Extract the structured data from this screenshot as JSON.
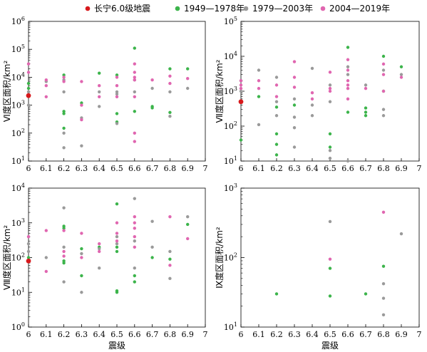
{
  "legend": [
    {
      "label": "长宁6.0级地震",
      "color": "#d7191c"
    },
    {
      "label": "1949—1978年",
      "color": "#3cb44b"
    },
    {
      "label": "1979—2003年",
      "color": "#9a9a9a"
    },
    {
      "label": "2004—2019年",
      "color": "#e066b0"
    }
  ],
  "chart_data": [
    {
      "type": "scatter",
      "ylabel": "Ⅵ度区面积/km²",
      "xlabel": "",
      "xlim": [
        6,
        7
      ],
      "xticks": [
        "6",
        "6.1",
        "6.2",
        "6.3",
        "6.4",
        "6.5",
        "6.6",
        "6.7",
        "6.8",
        "6.9",
        "7"
      ],
      "ylim_log10": [
        1,
        6
      ],
      "yscale": "log",
      "series": [
        {
          "color": "#3cb44b",
          "points": [
            [
              6.0,
              6000
            ],
            [
              6.0,
              4000
            ],
            [
              6.2,
              12000
            ],
            [
              6.2,
              600
            ],
            [
              6.2,
              500
            ],
            [
              6.2,
              150
            ],
            [
              6.3,
              1200
            ],
            [
              6.4,
              14000
            ],
            [
              6.5,
              12000
            ],
            [
              6.5,
              500
            ],
            [
              6.5,
              250
            ],
            [
              6.6,
              110000
            ],
            [
              6.6,
              600
            ],
            [
              6.7,
              900
            ],
            [
              6.7,
              800
            ],
            [
              6.8,
              20000
            ],
            [
              6.8,
              550
            ],
            [
              6.9,
              20000
            ]
          ]
        },
        {
          "color": "#9a9a9a",
          "points": [
            [
              6.0,
              3000
            ],
            [
              6.0,
              1000
            ],
            [
              6.1,
              7000
            ],
            [
              6.2,
              8000
            ],
            [
              6.2,
              3000
            ],
            [
              6.2,
              100
            ],
            [
              6.2,
              30
            ],
            [
              6.3,
              350
            ],
            [
              6.3,
              35
            ],
            [
              6.4,
              3000
            ],
            [
              6.4,
              900
            ],
            [
              6.5,
              3000
            ],
            [
              6.5,
              2500
            ],
            [
              6.5,
              220
            ],
            [
              6.6,
              8000
            ],
            [
              6.6,
              3000
            ],
            [
              6.7,
              4000
            ],
            [
              6.8,
              3000
            ],
            [
              6.8,
              400
            ],
            [
              6.9,
              4000
            ]
          ]
        },
        {
          "color": "#e066b0",
          "points": [
            [
              6.0,
              30000
            ],
            [
              6.0,
              15000
            ],
            [
              6.1,
              8000
            ],
            [
              6.1,
              5000
            ],
            [
              6.1,
              2000
            ],
            [
              6.2,
              10000
            ],
            [
              6.2,
              7000
            ],
            [
              6.3,
              7000
            ],
            [
              6.3,
              1000
            ],
            [
              6.3,
              300
            ],
            [
              6.4,
              5000
            ],
            [
              6.4,
              2000
            ],
            [
              6.5,
              10000
            ],
            [
              6.5,
              5000
            ],
            [
              6.5,
              2000
            ],
            [
              6.6,
              30000
            ],
            [
              6.6,
              15000
            ],
            [
              6.6,
              10000
            ],
            [
              6.6,
              8000
            ],
            [
              6.6,
              2000
            ],
            [
              6.6,
              100
            ],
            [
              6.6,
              50
            ],
            [
              6.7,
              8000
            ],
            [
              6.8,
              11000
            ],
            [
              6.8,
              6000
            ],
            [
              6.9,
              9000
            ]
          ]
        },
        {
          "color": "#d7191c",
          "points": [
            [
              6.0,
              2200
            ]
          ]
        }
      ]
    },
    {
      "type": "scatter",
      "ylabel": "Ⅶ度区面积/km²",
      "xlabel": "",
      "xlim": [
        6,
        7
      ],
      "xticks": [
        "6",
        "6.1",
        "6.2",
        "6.3",
        "6.4",
        "6.5",
        "6.6",
        "6.7",
        "6.8",
        "6.9",
        "7"
      ],
      "ylim_log10": [
        1,
        5
      ],
      "yscale": "log",
      "series": [
        {
          "color": "#3cb44b",
          "points": [
            [
              6.0,
              40
            ],
            [
              6.1,
              700
            ],
            [
              6.2,
              350
            ],
            [
              6.2,
              60
            ],
            [
              6.2,
              30
            ],
            [
              6.2,
              15
            ],
            [
              6.3,
              400
            ],
            [
              6.5,
              60
            ],
            [
              6.5,
              25
            ],
            [
              6.6,
              18000
            ],
            [
              6.6,
              250
            ],
            [
              6.7,
              330
            ],
            [
              6.7,
              250
            ],
            [
              6.7,
              200
            ],
            [
              6.8,
              10000
            ],
            [
              6.8,
              1000
            ],
            [
              6.9,
              5000
            ]
          ]
        },
        {
          "color": "#9a9a9a",
          "points": [
            [
              6.0,
              2000
            ],
            [
              6.0,
              1000
            ],
            [
              6.1,
              4000
            ],
            [
              6.1,
              110
            ],
            [
              6.2,
              2500
            ],
            [
              6.2,
              500
            ],
            [
              6.2,
              200
            ],
            [
              6.3,
              600
            ],
            [
              6.3,
              180
            ],
            [
              6.3,
              90
            ],
            [
              6.3,
              25
            ],
            [
              6.4,
              4500
            ],
            [
              6.4,
              400
            ],
            [
              6.4,
              200
            ],
            [
              6.5,
              1500
            ],
            [
              6.5,
              500
            ],
            [
              6.5,
              20
            ],
            [
              6.5,
              12
            ],
            [
              6.6,
              5000
            ],
            [
              6.6,
              3000
            ],
            [
              6.6,
              10
            ],
            [
              6.7,
              1500
            ],
            [
              6.8,
              4000
            ],
            [
              6.8,
              300
            ],
            [
              6.8,
              200
            ],
            [
              6.9,
              3000
            ]
          ]
        },
        {
          "color": "#e066b0",
          "points": [
            [
              6.0,
              2000
            ],
            [
              6.0,
              1500
            ],
            [
              6.0,
              1200
            ],
            [
              6.1,
              2000
            ],
            [
              6.1,
              1200
            ],
            [
              6.2,
              1500
            ],
            [
              6.2,
              700
            ],
            [
              6.3,
              7000
            ],
            [
              6.3,
              2500
            ],
            [
              6.3,
              1300
            ],
            [
              6.4,
              900
            ],
            [
              6.4,
              600
            ],
            [
              6.5,
              3500
            ],
            [
              6.5,
              1200
            ],
            [
              6.5,
              1000
            ],
            [
              6.6,
              8000
            ],
            [
              6.6,
              4000
            ],
            [
              6.6,
              2000
            ],
            [
              6.6,
              1500
            ],
            [
              6.6,
              1200
            ],
            [
              6.6,
              600
            ],
            [
              6.7,
              1200
            ],
            [
              6.8,
              6000
            ],
            [
              6.8,
              3000
            ],
            [
              6.8,
              1000
            ],
            [
              6.9,
              2500
            ]
          ]
        },
        {
          "color": "#d7191c",
          "points": [
            [
              6.0,
              500
            ]
          ]
        }
      ]
    },
    {
      "type": "scatter",
      "ylabel": "Ⅷ度区面积/km²",
      "xlabel": "震级",
      "xlim": [
        6,
        7
      ],
      "xticks": [
        "6",
        "6.1",
        "6.2",
        "6.3",
        "6.4",
        "6.5",
        "6.6",
        "6.7",
        "6.8",
        "6.9",
        "7"
      ],
      "ylim_log10": [
        0,
        4
      ],
      "yscale": "log",
      "series": [
        {
          "color": "#3cb44b",
          "points": [
            [
              6.0,
              100
            ],
            [
              6.2,
              800
            ],
            [
              6.2,
              700
            ],
            [
              6.2,
              80
            ],
            [
              6.2,
              70
            ],
            [
              6.3,
              180
            ],
            [
              6.3,
              30
            ],
            [
              6.4,
              200
            ],
            [
              6.5,
              3500
            ],
            [
              6.5,
              200
            ],
            [
              6.5,
              150
            ],
            [
              6.5,
              11
            ],
            [
              6.5,
              10
            ],
            [
              6.6,
              30
            ],
            [
              6.6,
              20
            ],
            [
              6.7,
              100
            ],
            [
              6.8,
              90
            ],
            [
              6.9,
              900
            ]
          ]
        },
        {
          "color": "#9a9a9a",
          "points": [
            [
              6.0,
              250
            ],
            [
              6.0,
              150
            ],
            [
              6.1,
              100
            ],
            [
              6.2,
              2700
            ],
            [
              6.2,
              200
            ],
            [
              6.2,
              20
            ],
            [
              6.3,
              130
            ],
            [
              6.3,
              10
            ],
            [
              6.4,
              180
            ],
            [
              6.4,
              50
            ],
            [
              6.5,
              400
            ],
            [
              6.5,
              250
            ],
            [
              6.6,
              5000
            ],
            [
              6.6,
              300
            ],
            [
              6.6,
              50
            ],
            [
              6.7,
              1100
            ],
            [
              6.7,
              200
            ],
            [
              6.8,
              150
            ],
            [
              6.8,
              25
            ],
            [
              6.9,
              1500
            ]
          ]
        },
        {
          "color": "#e066b0",
          "points": [
            [
              6.0,
              400
            ],
            [
              6.1,
              600
            ],
            [
              6.1,
              40
            ],
            [
              6.2,
              600
            ],
            [
              6.2,
              150
            ],
            [
              6.2,
              110
            ],
            [
              6.3,
              500
            ],
            [
              6.3,
              100
            ],
            [
              6.4,
              250
            ],
            [
              6.4,
              150
            ],
            [
              6.5,
              1000
            ],
            [
              6.5,
              500
            ],
            [
              6.5,
              300
            ],
            [
              6.6,
              1500
            ],
            [
              6.6,
              1000
            ],
            [
              6.6,
              700
            ],
            [
              6.6,
              400
            ],
            [
              6.6,
              200
            ],
            [
              6.8,
              1500
            ],
            [
              6.8,
              60
            ],
            [
              6.9,
              350
            ]
          ]
        },
        {
          "color": "#d7191c",
          "points": [
            [
              6.0,
              80
            ]
          ]
        }
      ]
    },
    {
      "type": "scatter",
      "ylabel": "Ⅸ度区面积/km²",
      "xlabel": "震级",
      "xlim": [
        6,
        7
      ],
      "xticks": [
        "6",
        "6.1",
        "6.2",
        "6.3",
        "6.4",
        "6.5",
        "6.6",
        "6.7",
        "6.8",
        "6.9",
        "7"
      ],
      "ylim_log10": [
        1,
        3
      ],
      "yscale": "log",
      "series": [
        {
          "color": "#3cb44b",
          "points": [
            [
              6.2,
              30
            ],
            [
              6.5,
              70
            ],
            [
              6.5,
              28
            ],
            [
              6.7,
              30
            ],
            [
              6.8,
              75
            ]
          ]
        },
        {
          "color": "#9a9a9a",
          "points": [
            [
              6.5,
              330
            ],
            [
              6.8,
              42
            ],
            [
              6.8,
              26
            ],
            [
              6.8,
              15
            ],
            [
              6.9,
              220
            ]
          ]
        },
        {
          "color": "#e066b0",
          "points": [
            [
              6.5,
              95
            ],
            [
              6.8,
              450
            ]
          ]
        },
        {
          "color": "#d7191c",
          "points": []
        }
      ]
    }
  ]
}
